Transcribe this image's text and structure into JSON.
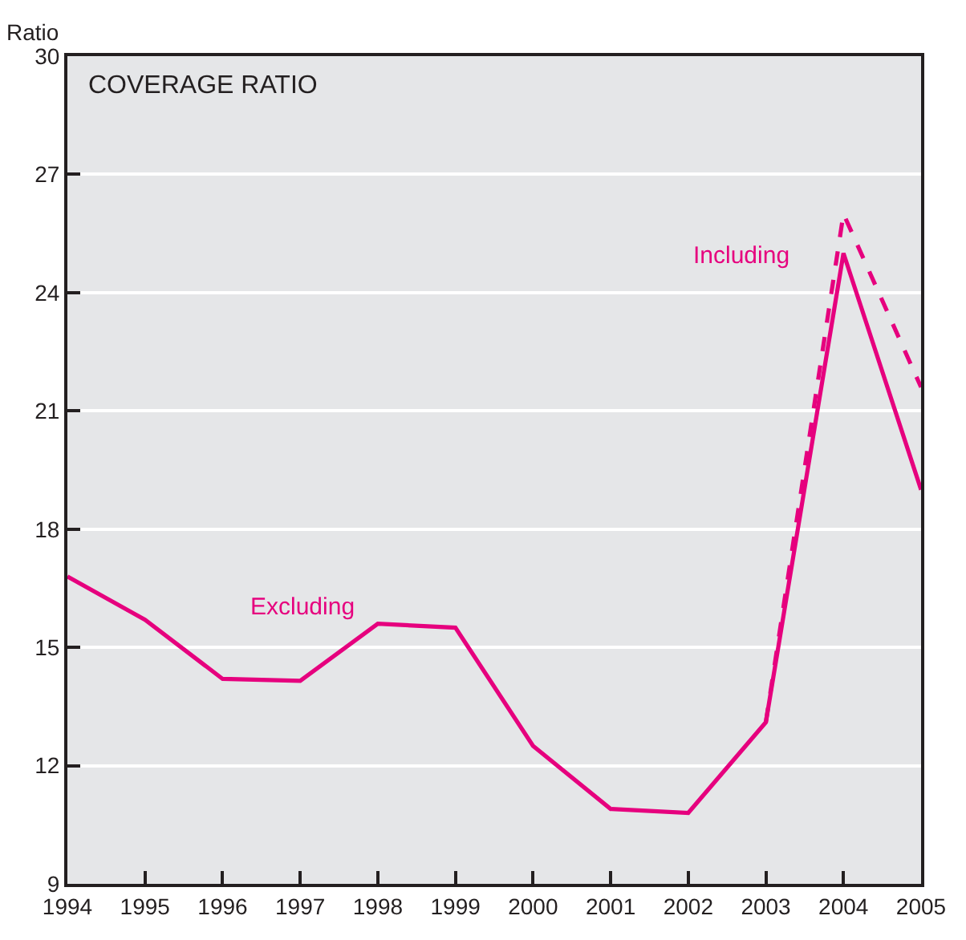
{
  "chart_data": {
    "type": "line",
    "title": "COVERAGE RATIO",
    "ylabel": "Ratio",
    "x": [
      1994,
      1995,
      1996,
      1997,
      1998,
      1999,
      2000,
      2001,
      2002,
      2003,
      2004,
      2005
    ],
    "series": [
      {
        "name": "Excluding",
        "color": "#e6007e",
        "line_style": "solid",
        "values": [
          16.8,
          15.7,
          14.2,
          14.15,
          15.6,
          15.5,
          12.5,
          10.9,
          10.8,
          13.1,
          25.0,
          19.0
        ]
      },
      {
        "name": "Including",
        "color": "#e6007e",
        "line_style": "dashed",
        "x": [
          2003,
          2004,
          2005
        ],
        "values": [
          13.1,
          26.0,
          21.6
        ]
      }
    ],
    "xlim": [
      1994,
      2005
    ],
    "xticks": [
      1994,
      1995,
      1996,
      1997,
      1998,
      1999,
      2000,
      2001,
      2002,
      2003,
      2004,
      2005
    ],
    "ylim": [
      9,
      30
    ],
    "yticks": [
      9,
      12,
      15,
      18,
      21,
      24,
      27,
      30
    ],
    "grid": "y",
    "legend": false,
    "marker": "none"
  }
}
